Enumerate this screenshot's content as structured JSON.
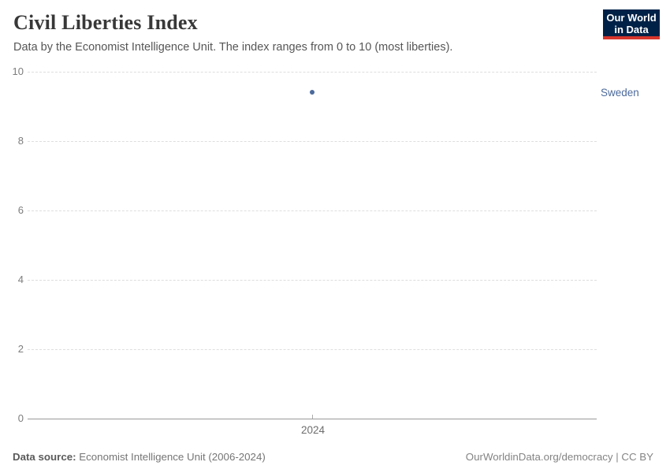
{
  "header": {
    "title": "Civil Liberties Index",
    "subtitle": "Data by the Economist Intelligence Unit. The index ranges from 0 to 10 (most liberties).",
    "logo": {
      "line1": "Our World",
      "line2": "in Data",
      "bg_color": "#002147",
      "stripe_color": "#d8352c"
    }
  },
  "chart_data": {
    "type": "scatter",
    "title": "Civil Liberties Index",
    "subtitle": "Data by the Economist Intelligence Unit. The index ranges from 0 to 10 (most liberties).",
    "series": [
      {
        "name": "Sweden",
        "x": [
          2024
        ],
        "values": [
          9.41
        ],
        "color": "#4c6a9c"
      }
    ],
    "xlabel": "",
    "ylabel": "",
    "xticks": [
      "2024"
    ],
    "yticks": [
      0,
      2,
      4,
      6,
      8,
      10
    ],
    "ylim": [
      0,
      10
    ],
    "grid": "horizontal-dashed",
    "legend_position": "right-entity-label"
  },
  "footer": {
    "source_label": "Data source:",
    "source_text": " Economist Intelligence Unit (2006-2024)",
    "right_text": "OurWorldinData.org/democracy | CC BY"
  }
}
